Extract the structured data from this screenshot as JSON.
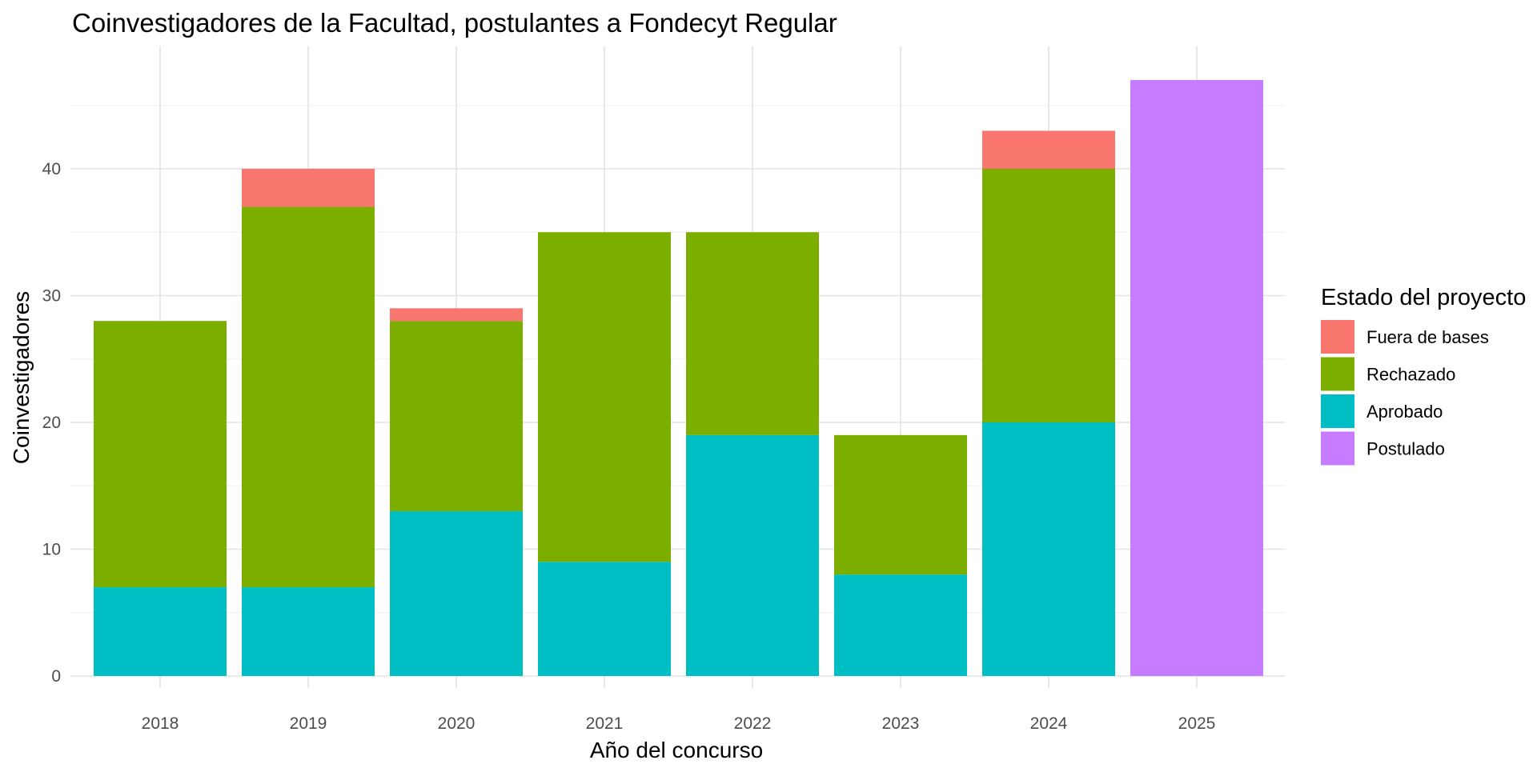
{
  "chart_data": {
    "type": "bar",
    "stacked": true,
    "title": "Coinvestigadores de la Facultad, postulantes a Fondecyt Regular",
    "xlabel": "Año del concurso",
    "ylabel": "Coinvestigadores",
    "categories": [
      "2018",
      "2019",
      "2020",
      "2021",
      "2022",
      "2023",
      "2024",
      "2025"
    ],
    "ylim": [
      0,
      49
    ],
    "yticks": [
      0,
      10,
      20,
      30,
      40
    ],
    "grid": true,
    "legend": {
      "title": "Estado del proyecto",
      "position": "right",
      "entries": [
        "Fuera de bases",
        "Rechazado",
        "Aprobado",
        "Postulado"
      ]
    },
    "series": [
      {
        "name": "Aprobado",
        "color": "#00BFC4",
        "values": [
          7,
          7,
          13,
          9,
          19,
          8,
          20,
          0
        ]
      },
      {
        "name": "Rechazado",
        "color": "#7CAE00",
        "values": [
          21,
          30,
          15,
          26,
          16,
          11,
          20,
          0
        ]
      },
      {
        "name": "Fuera de bases",
        "color": "#F8766D",
        "values": [
          0,
          3,
          1,
          0,
          0,
          0,
          3,
          0
        ]
      },
      {
        "name": "Postulado",
        "color": "#C77CFF",
        "values": [
          0,
          0,
          0,
          0,
          0,
          0,
          0,
          47
        ]
      }
    ]
  }
}
